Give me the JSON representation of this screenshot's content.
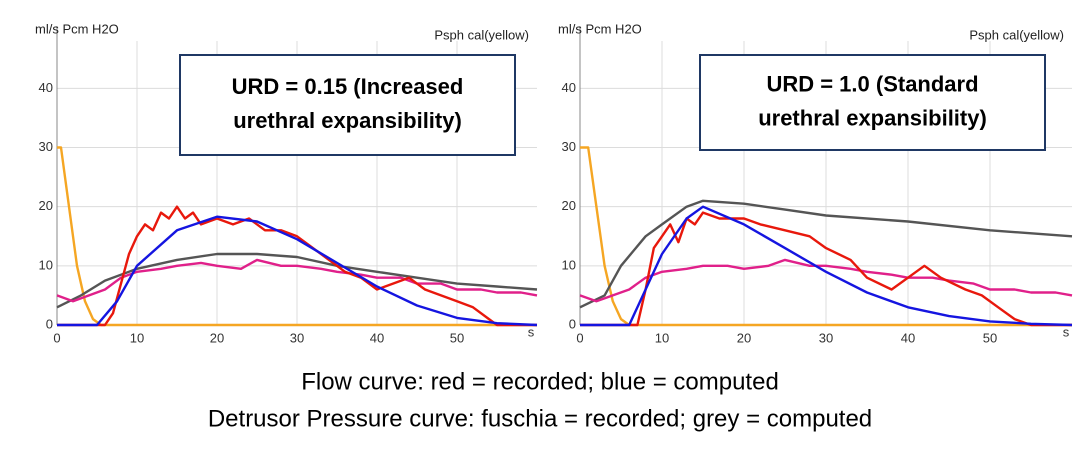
{
  "chart_data": [
    {
      "type": "line",
      "ylabel": "ml/s Pcm H2O",
      "subtitle": "Psph cal(yellow)",
      "xlabel": "s",
      "annotation": [
        "URD = 0.15 (Increased",
        "urethral expansibility)"
      ],
      "xlim": [
        0,
        60
      ],
      "ylim": [
        0,
        48
      ],
      "xticks": [
        0,
        10,
        20,
        30,
        40,
        50
      ],
      "yticks": [
        0,
        10,
        20,
        30,
        40
      ],
      "grid": true,
      "series": [
        {
          "color": "#f5a623",
          "x": [
            0,
            0.5,
            1.5,
            2.5,
            3.5,
            4.5,
            5.5,
            60
          ],
          "values": [
            30,
            30,
            20,
            10,
            4,
            1,
            0,
            0
          ]
        },
        {
          "color": "#555555",
          "x": [
            0,
            3,
            6,
            10,
            15,
            20,
            25,
            30,
            35,
            40,
            45,
            50,
            55,
            60
          ],
          "values": [
            3,
            5,
            7.5,
            9.5,
            11,
            12,
            12,
            11.5,
            10,
            9,
            8,
            7,
            6.5,
            6
          ]
        },
        {
          "color": "#e0208a",
          "x": [
            0,
            2,
            4,
            6,
            8,
            10,
            13,
            15,
            18,
            20,
            23,
            25,
            28,
            30,
            33,
            35,
            38,
            40,
            43,
            45,
            48,
            50,
            53,
            55,
            58,
            60
          ],
          "values": [
            5,
            4,
            5,
            6,
            8,
            9,
            9.5,
            10,
            10.5,
            10,
            9.5,
            11,
            10,
            10,
            9.5,
            9,
            8.5,
            8,
            8,
            7,
            7,
            6,
            6,
            5.5,
            5.5,
            5
          ]
        },
        {
          "color": "#e8180c",
          "x": [
            0,
            6,
            7,
            8,
            9,
            10,
            11,
            12,
            13,
            14,
            15,
            16,
            17,
            18,
            20,
            22,
            24,
            26,
            28,
            30,
            32,
            34,
            36,
            38,
            40,
            42,
            44,
            46,
            48,
            50,
            52,
            54,
            55,
            60
          ],
          "values": [
            0,
            0,
            2,
            7,
            12,
            15,
            17,
            16,
            19,
            18,
            20,
            18,
            19,
            17,
            18,
            17,
            18,
            16,
            16,
            15,
            13,
            11,
            9,
            8,
            6,
            7,
            8,
            6,
            5,
            4,
            3,
            1,
            0,
            0
          ]
        },
        {
          "color": "#1515e0",
          "x": [
            0,
            5,
            7.5,
            10,
            15,
            20,
            25,
            30,
            35,
            40,
            45,
            50,
            55,
            60
          ],
          "values": [
            0,
            0,
            4,
            10,
            16,
            18.3,
            17.5,
            14.5,
            10.5,
            6.5,
            3.3,
            1.2,
            0.3,
            0
          ]
        }
      ]
    },
    {
      "type": "line",
      "ylabel": "ml/s Pcm H2O",
      "subtitle": "Psph cal(yellow)",
      "xlabel": "s",
      "annotation": [
        "URD = 1.0 (Standard",
        "urethral expansibility)"
      ],
      "xlim": [
        0,
        60
      ],
      "ylim": [
        0,
        48
      ],
      "xticks": [
        0,
        10,
        20,
        30,
        40,
        50
      ],
      "yticks": [
        0,
        10,
        20,
        30,
        40
      ],
      "grid": true,
      "series": [
        {
          "color": "#f5a623",
          "x": [
            0,
            1,
            2,
            3,
            4,
            5,
            6,
            60
          ],
          "values": [
            30,
            30,
            20,
            10,
            4,
            1,
            0,
            0
          ]
        },
        {
          "color": "#555555",
          "x": [
            0,
            3,
            5,
            8,
            10,
            13,
            15,
            20,
            25,
            30,
            40,
            50,
            60
          ],
          "values": [
            3,
            5,
            10,
            15,
            17,
            20,
            21,
            20.5,
            19.5,
            18.5,
            17.5,
            16,
            15
          ]
        },
        {
          "color": "#e0208a",
          "x": [
            0,
            2,
            4,
            6,
            8,
            10,
            13,
            15,
            18,
            20,
            23,
            25,
            28,
            30,
            33,
            35,
            38,
            40,
            43,
            45,
            48,
            50,
            53,
            55,
            58,
            60
          ],
          "values": [
            5,
            4,
            5,
            6,
            8,
            9,
            9.5,
            10,
            10,
            9.5,
            10,
            11,
            10,
            10,
            9.5,
            9,
            8.5,
            8,
            8,
            7.5,
            7,
            6,
            6,
            5.5,
            5.5,
            5
          ]
        },
        {
          "color": "#e8180c",
          "x": [
            0,
            7,
            8,
            9,
            10,
            11,
            12,
            13,
            14,
            15,
            17,
            20,
            22,
            25,
            28,
            30,
            33,
            35,
            38,
            40,
            42,
            44,
            47,
            49,
            51,
            53,
            55,
            60
          ],
          "values": [
            0,
            0,
            6,
            13,
            15,
            17,
            14,
            18,
            17,
            19,
            18,
            18,
            17,
            16,
            15,
            13,
            11,
            8,
            6,
            8,
            10,
            8,
            6,
            5,
            3,
            1,
            0,
            0
          ]
        },
        {
          "color": "#1515e0",
          "x": [
            0,
            6,
            8,
            10,
            13,
            15,
            20,
            25,
            30,
            35,
            40,
            45,
            50,
            55,
            60
          ],
          "values": [
            0,
            0,
            6,
            12,
            18,
            20,
            17,
            13,
            9,
            5.5,
            3,
            1.5,
            0.6,
            0.2,
            0
          ]
        }
      ]
    }
  ],
  "caption": [
    "Flow curve: red = recorded; blue = computed",
    "Detrusor Pressure curve: fuschia = recorded; grey = computed"
  ]
}
